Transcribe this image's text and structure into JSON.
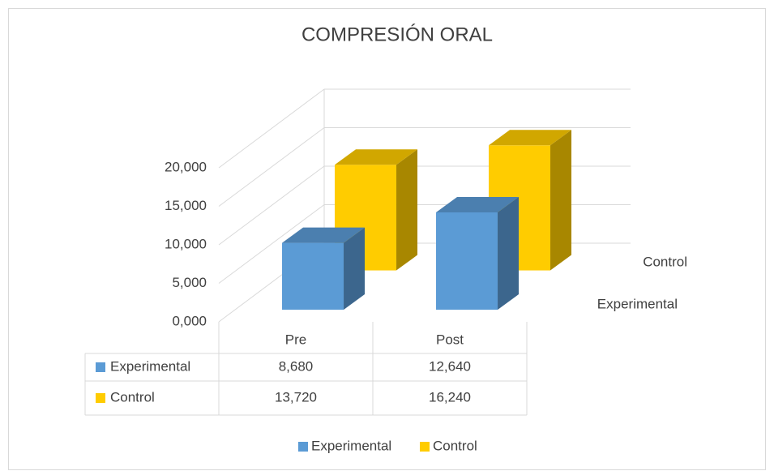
{
  "chart_data": {
    "type": "bar3d",
    "title": "COMPRESIÓN ORAL",
    "categories": [
      "Pre",
      "Post"
    ],
    "series": [
      {
        "name": "Experimental",
        "color": "#5b9bd5",
        "values": [
          8.68,
          12.64
        ],
        "value_labels": [
          "8,680",
          "12,640"
        ]
      },
      {
        "name": "Control",
        "color": "#ffcc00",
        "values": [
          13.72,
          16.24
        ],
        "value_labels": [
          "13,720",
          "16,240"
        ]
      }
    ],
    "ylim": [
      0,
      20
    ],
    "yticks": [
      {
        "value": 0,
        "label": "0,000"
      },
      {
        "value": 5,
        "label": "5,000"
      },
      {
        "value": 10,
        "label": "10,000"
      },
      {
        "value": 15,
        "label": "15,000"
      },
      {
        "value": 20,
        "label": "20,000"
      }
    ],
    "grid": true,
    "legend": "bottom",
    "data_table": true
  }
}
